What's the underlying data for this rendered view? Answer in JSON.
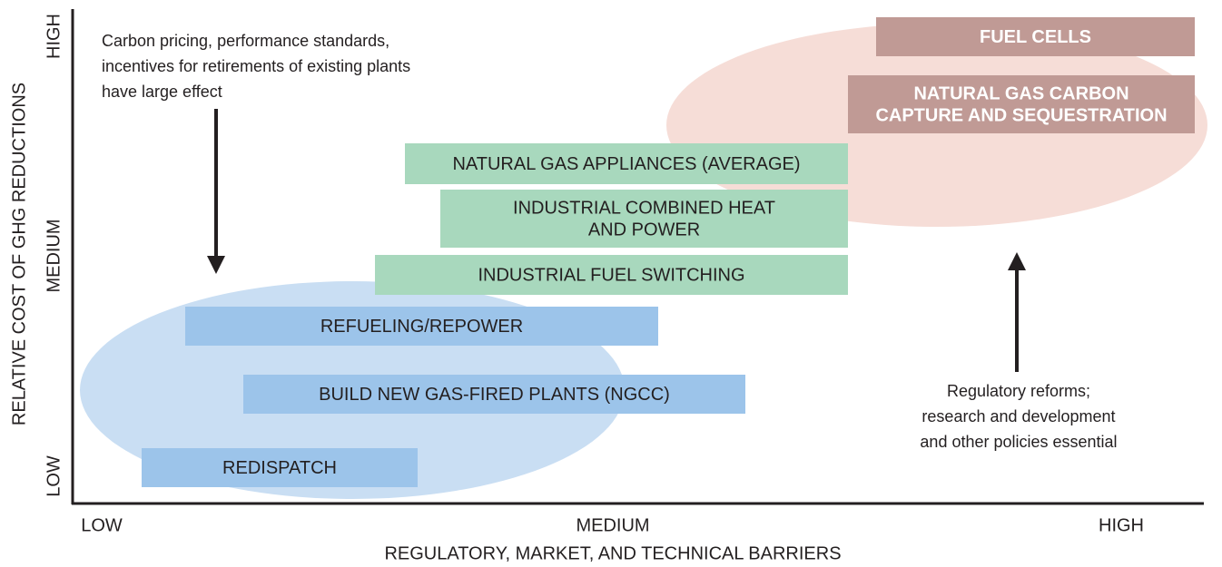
{
  "axes": {
    "y_label": "RELATIVE COST OF GHG REDUCTIONS",
    "y_ticks": [
      "LOW",
      "MEDIUM",
      "HIGH"
    ],
    "x_label": "REGULATORY, MARKET, AND TECHNICAL BARRIERS",
    "x_ticks": [
      "LOW",
      "MEDIUM",
      "HIGH"
    ]
  },
  "boxes": [
    {
      "lines": [
        "FUEL CELLS"
      ]
    },
    {
      "lines": [
        "NATURAL GAS CARBON",
        "CAPTURE AND SEQUESTRATION"
      ]
    },
    {
      "lines": [
        "NATURAL GAS APPLIANCES (AVERAGE)"
      ]
    },
    {
      "lines": [
        "INDUSTRIAL COMBINED HEAT",
        "AND POWER"
      ]
    },
    {
      "lines": [
        "INDUSTRIAL FUEL SWITCHING"
      ]
    },
    {
      "lines": [
        "REFUELING/REPOWER"
      ]
    },
    {
      "lines": [
        "BUILD NEW GAS-FIRED PLANTS (NGCC)"
      ]
    },
    {
      "lines": [
        "REDISPATCH"
      ]
    }
  ],
  "annotations": [
    {
      "lines": [
        "Carbon pricing, performance standards,",
        "incentives for retirements of existing plants",
        "have large effect"
      ]
    },
    {
      "lines": [
        "Regulatory reforms;",
        "research and development",
        "and other policies essential"
      ]
    }
  ]
}
